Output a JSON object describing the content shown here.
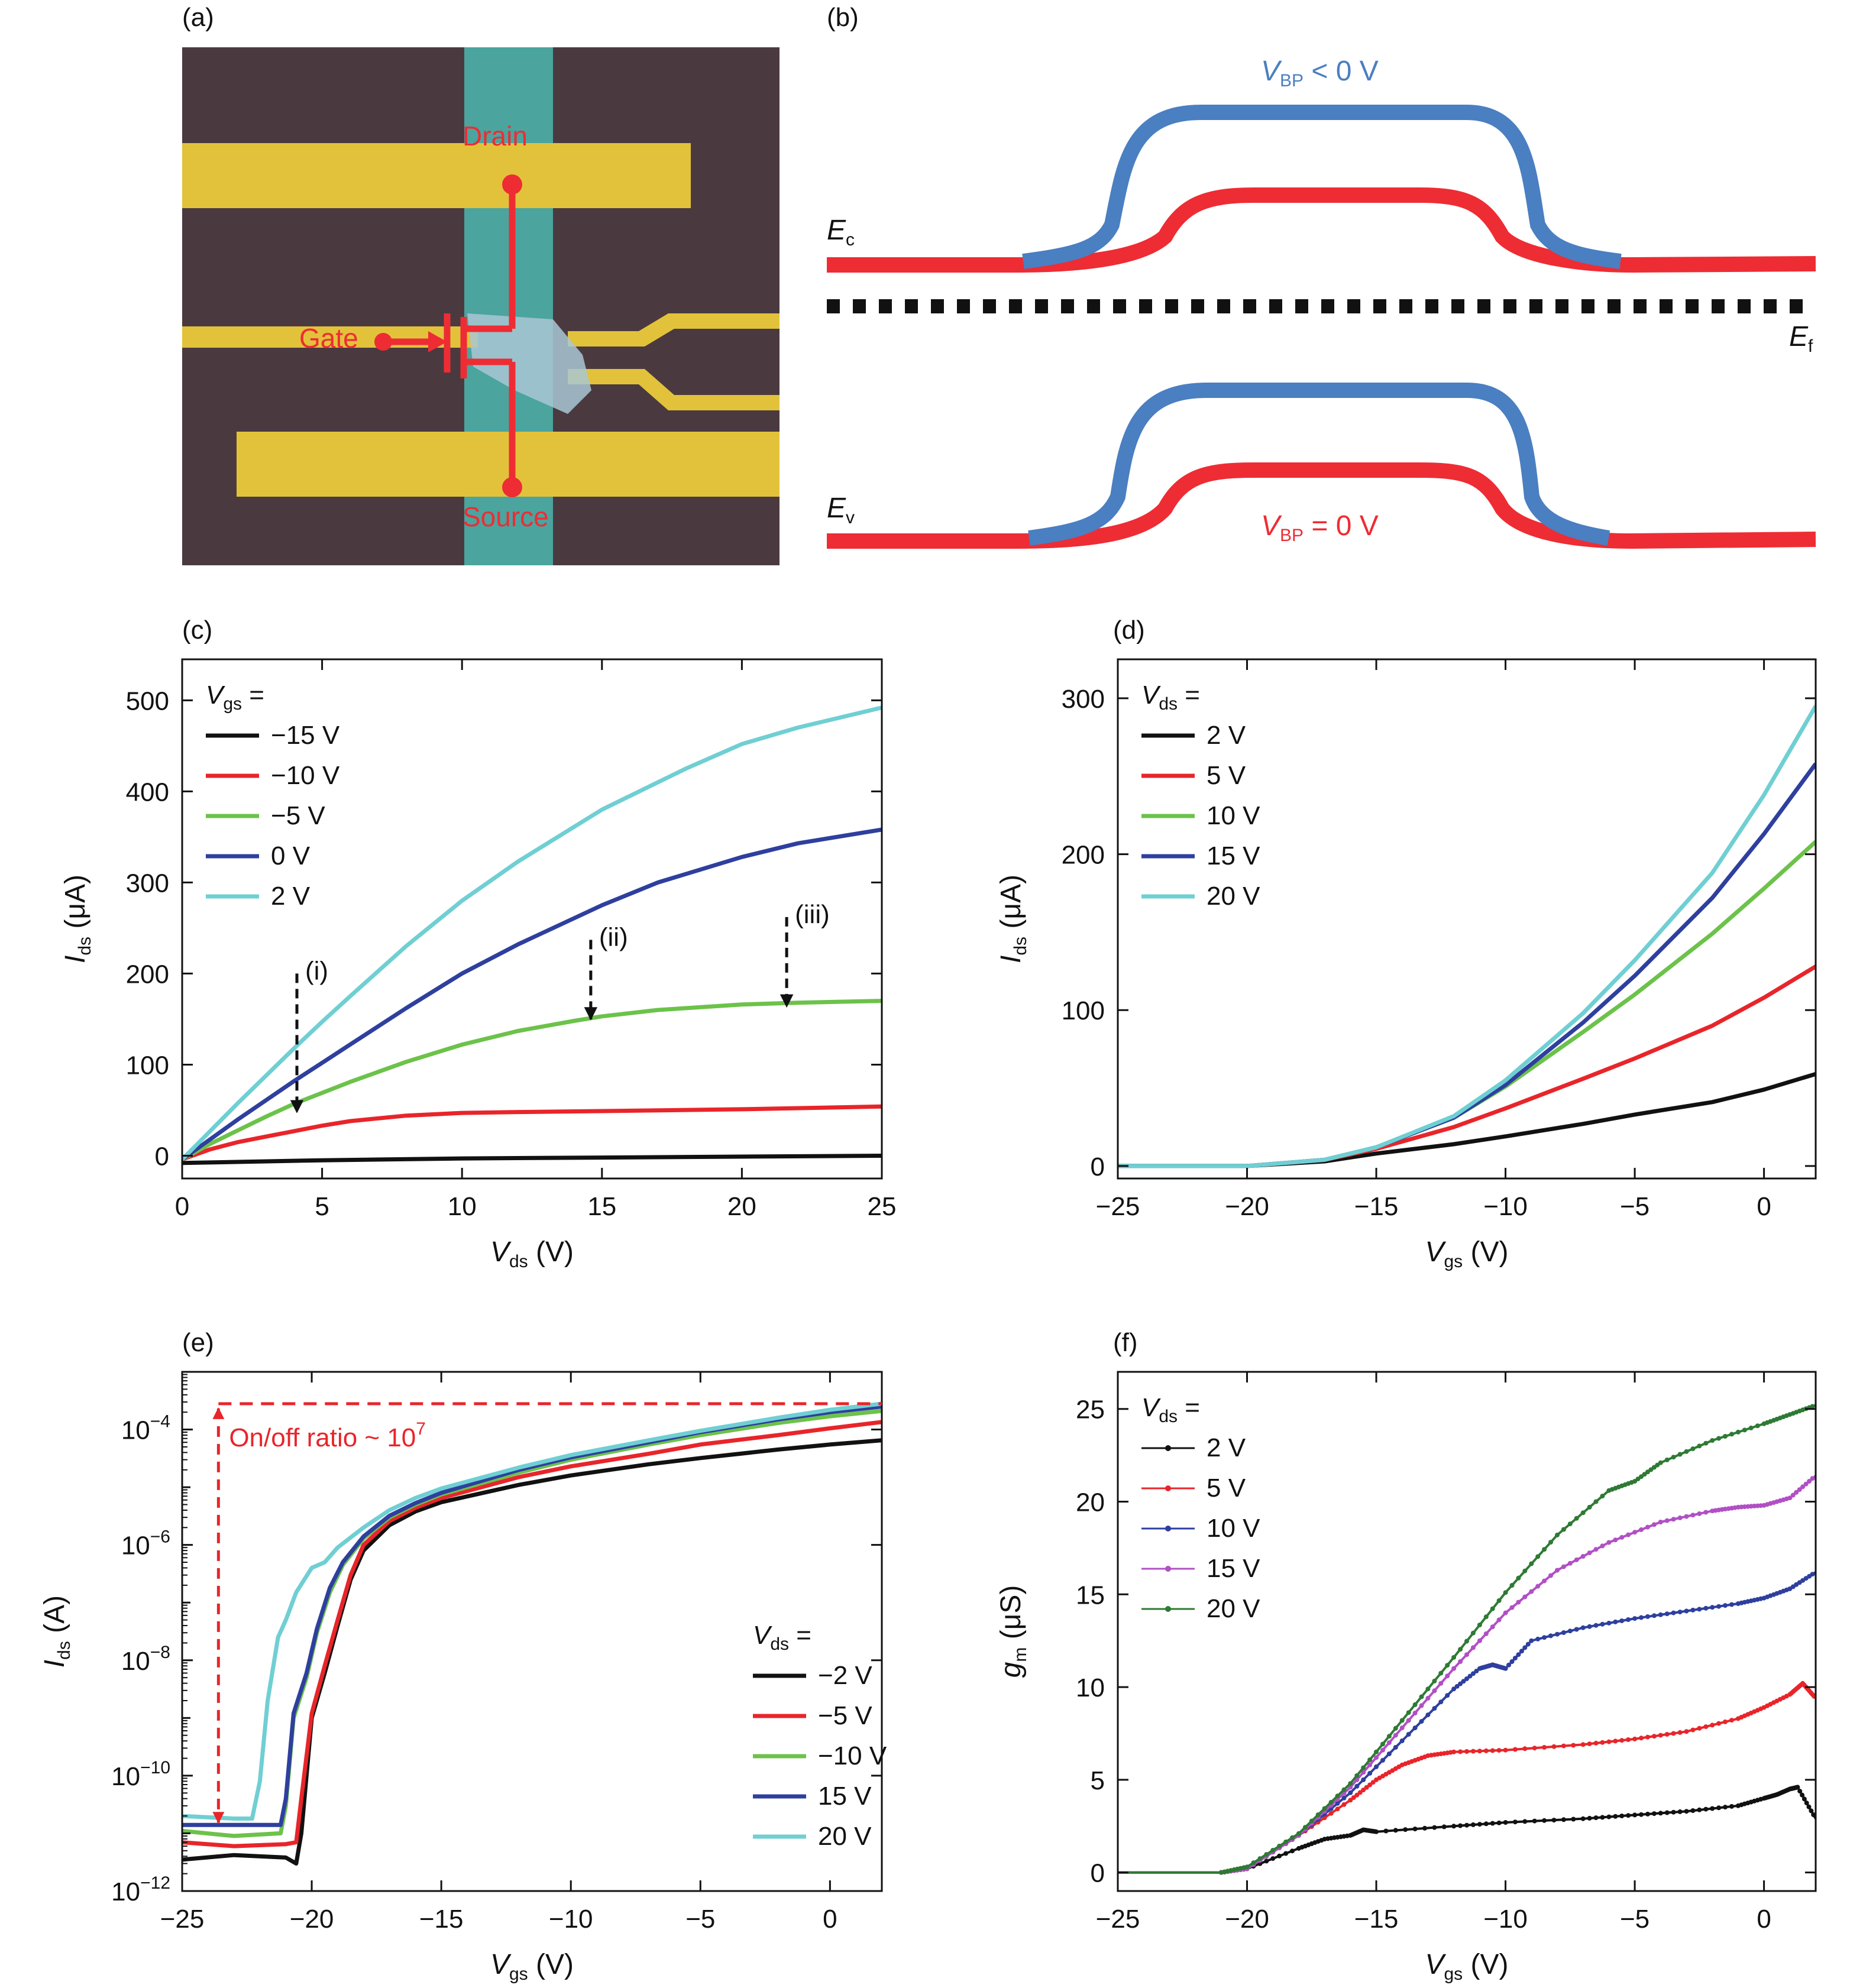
{
  "colors": {
    "black": "#111111",
    "red": "#e8252a",
    "green": "#6cc24a",
    "blue": "#2e3f9e",
    "cyan": "#6fcfd3",
    "purple": "#b14fc5",
    "darkgreen": "#2e7a34",
    "bp_blue": "#4a7fc1",
    "bp_red": "#ee2c34",
    "gold": "#e2c23a",
    "micro_bg": "#4a3a3f",
    "flake": "#4bb0a8"
  },
  "panel_a": {
    "label": "(a)",
    "drain": "Drain",
    "gate": "Gate",
    "source": "Source"
  },
  "panel_b": {
    "label": "(b)",
    "ec": "E",
    "ec_sub": "c",
    "ef": "E",
    "ef_sub": "f",
    "ev": "E",
    "ev_sub": "v",
    "vbp_neg": {
      "v": "V",
      "sub": "BP",
      "rest": " < 0 V"
    },
    "vbp_zero": {
      "v": "V",
      "sub": "BP",
      "rest": " = 0 V"
    }
  },
  "chart_data": [
    {
      "panel": "(c)",
      "type": "line",
      "xlabel": {
        "sym": "V",
        "sub": "ds",
        "unit": " (V)"
      },
      "ylabel": {
        "sym": "I",
        "sub": "ds",
        "unit": " (μA)"
      },
      "xlim": [
        0,
        25
      ],
      "ylim": [
        -25,
        545
      ],
      "xticks": [
        0,
        5,
        10,
        15,
        20,
        25
      ],
      "yticks": [
        0,
        100,
        200,
        300,
        400,
        500
      ],
      "xtick_labels": [
        "0",
        "5",
        "10",
        "15",
        "20",
        "25"
      ],
      "ytick_labels": [
        "0",
        "100",
        "200",
        "300",
        "400",
        "500"
      ],
      "legend_title": {
        "sym": "V",
        "sub": "gs",
        "rest": " ="
      },
      "series": [
        {
          "name": "−15 V",
          "color": "#111111",
          "x": [
            0,
            5,
            10,
            15,
            20,
            25
          ],
          "y": [
            -8,
            -5,
            -3,
            -2,
            -1,
            0
          ]
        },
        {
          "name": "−10 V",
          "color": "#e8252a",
          "x": [
            0,
            1,
            2,
            3,
            4,
            5,
            6,
            8,
            10,
            12,
            15,
            20,
            25
          ],
          "y": [
            -4,
            7,
            15,
            21,
            27,
            33,
            38,
            44,
            47,
            48,
            49,
            51,
            54
          ]
        },
        {
          "name": "−5 V",
          "color": "#6cc24a",
          "x": [
            0,
            1,
            2,
            3,
            4,
            5,
            6,
            8,
            10,
            12,
            14,
            15,
            17,
            20,
            22,
            25
          ],
          "y": [
            -4,
            13,
            28,
            43,
            57,
            69,
            81,
            103,
            122,
            137,
            148,
            153,
            160,
            166,
            168,
            170
          ]
        },
        {
          "name": "0 V",
          "color": "#2e3f9e",
          "x": [
            0,
            1,
            2,
            3,
            4,
            5,
            6,
            8,
            10,
            12,
            15,
            17,
            20,
            22,
            25
          ],
          "y": [
            -4,
            18,
            40,
            61,
            82,
            102,
            122,
            162,
            200,
            232,
            275,
            300,
            328,
            343,
            358
          ]
        },
        {
          "name": "2 V",
          "color": "#6fcfd3",
          "x": [
            0,
            1,
            2,
            3,
            4,
            5,
            6,
            8,
            10,
            12,
            15,
            18,
            20,
            22,
            25
          ],
          "y": [
            -4,
            27,
            58,
            88,
            118,
            147,
            175,
            230,
            280,
            323,
            380,
            425,
            452,
            470,
            492
          ]
        }
      ],
      "annotations": [
        {
          "text": "(i)",
          "x": 4.1,
          "y_from": 200,
          "y_to": 48
        },
        {
          "text": "(ii)",
          "x": 14.6,
          "y_from": 237,
          "y_to": 150
        },
        {
          "text": "(iii)",
          "x": 21.6,
          "y_from": 262,
          "y_to": 164
        }
      ]
    },
    {
      "panel": "(d)",
      "type": "line",
      "xlabel": {
        "sym": "V",
        "sub": "gs",
        "unit": " (V)"
      },
      "ylabel": {
        "sym": "I",
        "sub": "ds",
        "unit": " (μA)"
      },
      "xlim": [
        -25,
        2
      ],
      "ylim": [
        -8,
        325
      ],
      "xticks": [
        -25,
        -20,
        -15,
        -10,
        -5,
        0
      ],
      "yticks": [
        0,
        100,
        200,
        300
      ],
      "xtick_labels": [
        "−25",
        "−20",
        "−15",
        "−10",
        "−5",
        "0"
      ],
      "ytick_labels": [
        "0",
        "100",
        "200",
        "300"
      ],
      "legend_title": {
        "sym": "V",
        "sub": "ds",
        "rest": " ="
      },
      "series": [
        {
          "name": "2 V",
          "color": "#111111",
          "x": [
            -25,
            -20,
            -17,
            -15,
            -12,
            -10,
            -7,
            -5,
            -2,
            0,
            2
          ],
          "y": [
            0,
            0,
            3,
            8,
            14,
            19,
            27,
            33,
            41,
            49,
            59
          ]
        },
        {
          "name": "5 V",
          "color": "#e8252a",
          "x": [
            -25,
            -20,
            -17,
            -15,
            -12,
            -10,
            -7,
            -5,
            -2,
            0,
            2
          ],
          "y": [
            0,
            0,
            4,
            11,
            25,
            37,
            56,
            69,
            90,
            108,
            128
          ]
        },
        {
          "name": "10 V",
          "color": "#6cc24a",
          "x": [
            -25,
            -20,
            -17,
            -15,
            -12,
            -10,
            -7,
            -5,
            -2,
            0,
            2
          ],
          "y": [
            0,
            0,
            4,
            12,
            31,
            51,
            86,
            110,
            149,
            178,
            208
          ]
        },
        {
          "name": "15 V",
          "color": "#2e3f9e",
          "x": [
            -25,
            -20,
            -17,
            -15,
            -12,
            -10,
            -7,
            -5,
            -2,
            0,
            2
          ],
          "y": [
            0,
            0,
            4,
            12,
            31,
            52,
            92,
            122,
            172,
            213,
            258
          ]
        },
        {
          "name": "20 V",
          "color": "#6fcfd3",
          "x": [
            -25,
            -20,
            -17,
            -15,
            -12,
            -10,
            -7,
            -5,
            -2,
            0,
            2
          ],
          "y": [
            0,
            0,
            4,
            12,
            32,
            55,
            98,
            132,
            188,
            238,
            295
          ]
        }
      ]
    },
    {
      "panel": "(e)",
      "type": "line",
      "log_y": true,
      "xlabel": {
        "sym": "V",
        "sub": "gs",
        "unit": " (V)"
      },
      "ylabel": {
        "sym": "I",
        "sub": "ds",
        "unit": " (A)"
      },
      "xlim": [
        -25,
        2
      ],
      "ylim": [
        1e-12,
        0.001
      ],
      "xticks": [
        -25,
        -20,
        -15,
        -10,
        -5,
        0
      ],
      "yticks": [
        1e-12,
        1e-10,
        1e-08,
        1e-06,
        0.0001
      ],
      "xtick_labels": [
        "−25",
        "−20",
        "−15",
        "−10",
        "−5",
        "0"
      ],
      "ytick_labels": [
        {
          "base": "10",
          "exp": "−12"
        },
        {
          "base": "10",
          "exp": "−10"
        },
        {
          "base": "10",
          "exp": "−8"
        },
        {
          "base": "10",
          "exp": "−6"
        },
        {
          "base": "10",
          "exp": "−4"
        }
      ],
      "legend_title": {
        "sym": "V",
        "sub": "ds",
        "rest": " ="
      },
      "series": [
        {
          "name": "−2 V",
          "color": "#111111",
          "x": [
            -25,
            -23,
            -21,
            -20.6,
            -20.4,
            -20,
            -19.5,
            -19,
            -18.5,
            -18,
            -17,
            -16,
            -15,
            -12,
            -10,
            -7,
            -5,
            -2,
            0,
            2
          ],
          "y": [
            3.5e-12,
            4.2e-12,
            3.8e-12,
            3e-12,
            1e-11,
            1e-09,
            6e-09,
            4e-08,
            2.5e-07,
            8e-07,
            2.2e-06,
            3.8e-06,
            5.5e-06,
            1.1e-05,
            1.6e-05,
            2.5e-05,
            3.2e-05,
            4.5e-05,
            5.5e-05,
            6.5e-05
          ]
        },
        {
          "name": "−5 V",
          "color": "#e8252a",
          "x": [
            -25,
            -23,
            -21,
            -20.6,
            -20.4,
            -20,
            -19.5,
            -19,
            -18.5,
            -18,
            -17,
            -16,
            -15,
            -12,
            -10,
            -7,
            -5,
            -2,
            0,
            2
          ],
          "y": [
            7e-12,
            6e-12,
            6.5e-12,
            7e-12,
            4e-11,
            1.2e-09,
            8e-09,
            5e-08,
            3e-07,
            1e-06,
            2.6e-06,
            4.4e-06,
            6.5e-06,
            1.5e-05,
            2.3e-05,
            3.8e-05,
            5.5e-05,
            8e-05,
            0.000105,
            0.000135
          ]
        },
        {
          "name": "−10 V",
          "color": "#6cc24a",
          "x": [
            -25,
            -23,
            -21.2,
            -21,
            -20.7,
            -20.2,
            -19.8,
            -19.3,
            -18.8,
            -18,
            -17,
            -16,
            -15,
            -12,
            -10,
            -7,
            -5,
            -2,
            0,
            2
          ],
          "y": [
            1.1e-11,
            9e-12,
            1e-11,
            3e-11,
            1e-09,
            5e-09,
            3e-08,
            1.5e-07,
            4.5e-07,
            1.3e-06,
            3e-06,
            5e-06,
            7.5e-06,
            1.8e-05,
            3e-05,
            5.5e-05,
            8e-05,
            0.00013,
            0.00017,
            0.00021
          ]
        },
        {
          "name": "15 V",
          "color": "#2e3f9e",
          "x": [
            -25,
            -23,
            -21.2,
            -21,
            -20.7,
            -20.2,
            -19.8,
            -19.3,
            -18.8,
            -18,
            -17,
            -16,
            -15,
            -12,
            -10,
            -7,
            -5,
            -2,
            0,
            2
          ],
          "y": [
            1.4e-11,
            1.4e-11,
            1.4e-11,
            4e-11,
            1.2e-09,
            6e-09,
            3.5e-08,
            1.8e-07,
            5e-07,
            1.4e-06,
            3.2e-06,
            5.3e-06,
            8e-06,
            2e-05,
            3.3e-05,
            6e-05,
            9e-05,
            0.00015,
            0.0002,
            0.00025
          ]
        },
        {
          "name": "20 V",
          "color": "#6fcfd3",
          "x": [
            -25,
            -23,
            -22.3,
            -22,
            -21.7,
            -21.3,
            -21,
            -20.6,
            -20,
            -19.5,
            -19,
            -18,
            -17,
            -16,
            -15,
            -12,
            -10,
            -7,
            -5,
            -2,
            0,
            2
          ],
          "y": [
            2e-11,
            1.8e-11,
            1.8e-11,
            8e-11,
            2e-09,
            2.5e-08,
            5e-08,
            1.5e-07,
            4e-07,
            5e-07,
            9e-07,
            2e-06,
            4e-06,
            6.5e-06,
            9.5e-06,
            2.2e-05,
            3.6e-05,
            6.5e-05,
            9.5e-05,
            0.00016,
            0.00022,
            0.00028
          ]
        }
      ],
      "ratio_label": {
        "text": "On/off ratio ~ 10",
        "exp": "7"
      },
      "ratio_top": 0.00028,
      "ratio_bottom": 1.4e-11,
      "ratio_x": -23.6
    },
    {
      "panel": "(f)",
      "type": "line",
      "xlabel": {
        "sym": "V",
        "sub": "gs",
        "unit": " (V)"
      },
      "ylabel": {
        "sym": "g",
        "sub": "m",
        "unit": " (μS)"
      },
      "xlim": [
        -25,
        2
      ],
      "ylim": [
        -1,
        27
      ],
      "xticks": [
        -25,
        -20,
        -15,
        -10,
        -5,
        0
      ],
      "yticks": [
        0,
        5,
        10,
        15,
        20,
        25
      ],
      "xtick_labels": [
        "−25",
        "−20",
        "−15",
        "−10",
        "−5",
        "0"
      ],
      "ytick_labels": [
        "0",
        "5",
        "10",
        "15",
        "20",
        "25"
      ],
      "legend_title": {
        "sym": "V",
        "sub": "ds",
        "rest": " ="
      },
      "series": [
        {
          "name": "2 V",
          "color": "#111111",
          "x": [
            -25,
            -21,
            -20,
            -18,
            -17,
            -16,
            -15.5,
            -15,
            -12,
            -10,
            -7,
            -5,
            -3,
            -1,
            0,
            0.5,
            1,
            1.3,
            2
          ],
          "y": [
            0,
            0,
            0.2,
            1.3,
            1.8,
            2.0,
            2.3,
            2.2,
            2.5,
            2.7,
            2.9,
            3.1,
            3.3,
            3.6,
            4.0,
            4.2,
            4.5,
            4.6,
            2.9
          ]
        },
        {
          "name": "5 V",
          "color": "#e8252a",
          "x": [
            -25,
            -21,
            -20,
            -18,
            -16,
            -15,
            -14,
            -13,
            -12,
            -10,
            -7,
            -5,
            -3,
            -1,
            0,
            1,
            1.5,
            2
          ],
          "y": [
            0,
            0,
            0.2,
            2.0,
            3.9,
            5.0,
            5.8,
            6.3,
            6.5,
            6.6,
            6.9,
            7.2,
            7.6,
            8.3,
            8.9,
            9.6,
            10.2,
            9.4
          ]
        },
        {
          "name": "10 V",
          "color": "#2e3f9e",
          "x": [
            -25,
            -21,
            -20,
            -18,
            -16,
            -14,
            -12,
            -11,
            -10.5,
            -10,
            -9,
            -7,
            -5,
            -3,
            -1,
            0,
            1,
            2
          ],
          "y": [
            0,
            0,
            0.2,
            2.0,
            4.3,
            7.1,
            9.9,
            11.0,
            11.2,
            11.0,
            12.5,
            13.2,
            13.7,
            14.1,
            14.5,
            14.8,
            15.3,
            16.2
          ]
        },
        {
          "name": "15 V",
          "color": "#b14fc5",
          "x": [
            -25,
            -21,
            -20,
            -18,
            -16,
            -14,
            -12,
            -10,
            -8,
            -6,
            -4,
            -2,
            -1,
            0,
            1,
            2
          ],
          "y": [
            0,
            0,
            0.2,
            2.0,
            4.6,
            7.8,
            11.0,
            14.0,
            16.3,
            17.8,
            18.9,
            19.5,
            19.7,
            19.8,
            20.2,
            21.4
          ]
        },
        {
          "name": "20 V",
          "color": "#2e7a34",
          "x": [
            -25,
            -21,
            -20,
            -18,
            -16,
            -14,
            -12,
            -10,
            -8,
            -6,
            -5,
            -4,
            -2,
            0,
            1,
            2
          ],
          "y": [
            0,
            0,
            0.3,
            2.1,
            4.8,
            8.2,
            11.6,
            15.1,
            18.2,
            20.6,
            21.1,
            22.1,
            23.3,
            24.2,
            24.7,
            25.2
          ]
        }
      ]
    }
  ]
}
